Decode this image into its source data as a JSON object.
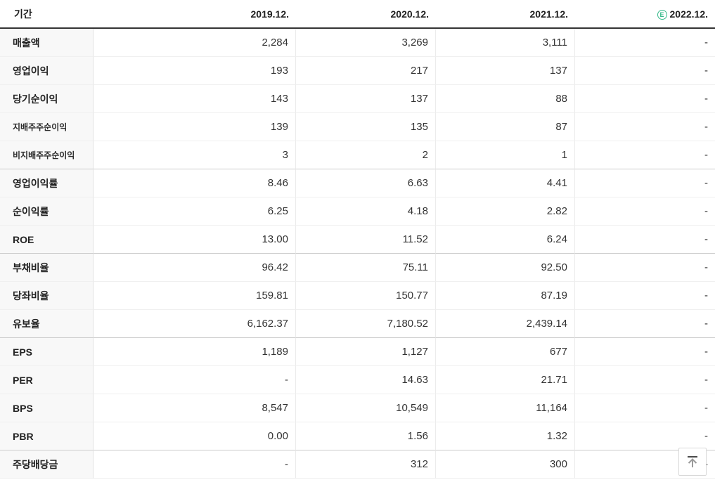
{
  "header": {
    "period_label": "기간",
    "columns": [
      {
        "label": "2019.12.",
        "estimate": false
      },
      {
        "label": "2020.12.",
        "estimate": false
      },
      {
        "label": "2021.12.",
        "estimate": false
      },
      {
        "label": "2022.12.",
        "estimate": true
      }
    ],
    "estimate_badge": "E"
  },
  "rows": [
    {
      "label": "매출액",
      "sub": false,
      "group_end": false,
      "values": [
        "2,284",
        "3,269",
        "3,111",
        "-"
      ]
    },
    {
      "label": "영업이익",
      "sub": false,
      "group_end": false,
      "values": [
        "193",
        "217",
        "137",
        "-"
      ]
    },
    {
      "label": "당기순이익",
      "sub": false,
      "group_end": false,
      "values": [
        "143",
        "137",
        "88",
        "-"
      ]
    },
    {
      "label": "지배주주순이익",
      "sub": true,
      "group_end": false,
      "values": [
        "139",
        "135",
        "87",
        "-"
      ]
    },
    {
      "label": "비지배주주순이익",
      "sub": true,
      "group_end": true,
      "values": [
        "3",
        "2",
        "1",
        "-"
      ]
    },
    {
      "label": "영업이익률",
      "sub": false,
      "group_end": false,
      "values": [
        "8.46",
        "6.63",
        "4.41",
        "-"
      ]
    },
    {
      "label": "순이익률",
      "sub": false,
      "group_end": false,
      "values": [
        "6.25",
        "4.18",
        "2.82",
        "-"
      ]
    },
    {
      "label": "ROE",
      "sub": false,
      "group_end": true,
      "values": [
        "13.00",
        "11.52",
        "6.24",
        "-"
      ]
    },
    {
      "label": "부채비율",
      "sub": false,
      "group_end": false,
      "values": [
        "96.42",
        "75.11",
        "92.50",
        "-"
      ]
    },
    {
      "label": "당좌비율",
      "sub": false,
      "group_end": false,
      "values": [
        "159.81",
        "150.77",
        "87.19",
        "-"
      ]
    },
    {
      "label": "유보율",
      "sub": false,
      "group_end": true,
      "values": [
        "6,162.37",
        "7,180.52",
        "2,439.14",
        "-"
      ]
    },
    {
      "label": "EPS",
      "sub": false,
      "group_end": false,
      "values": [
        "1,189",
        "1,127",
        "677",
        "-"
      ]
    },
    {
      "label": "PER",
      "sub": false,
      "group_end": false,
      "values": [
        "-",
        "14.63",
        "21.71",
        "-"
      ]
    },
    {
      "label": "BPS",
      "sub": false,
      "group_end": false,
      "values": [
        "8,547",
        "10,549",
        "11,164",
        "-"
      ]
    },
    {
      "label": "PBR",
      "sub": false,
      "group_end": true,
      "values": [
        "0.00",
        "1.56",
        "1.32",
        "-"
      ]
    },
    {
      "label": "주당배당금",
      "sub": false,
      "group_end": false,
      "values": [
        "-",
        "312",
        "300",
        "-"
      ]
    }
  ],
  "colors": {
    "estimate_green": "#35b98a",
    "header_border": "#343434",
    "group_border": "#cccccc",
    "row_border": "#f0f0f0",
    "label_column_bg": "#f8f8f8"
  },
  "scroll_top": {
    "icon": "arrow-up-to-top"
  }
}
